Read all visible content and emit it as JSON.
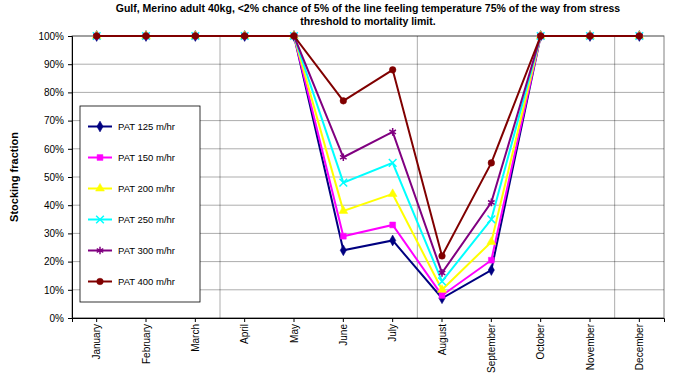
{
  "chart_data": {
    "type": "line",
    "title": [
      "Gulf,  Merino adult 40kg,  <2% chance of 5% of the line feeling temperature 75% of the way from stress",
      "threshold to mortality limit."
    ],
    "y_label": "Stocking fraction",
    "categories": [
      "January",
      "February",
      "March",
      "April",
      "May",
      "June",
      "July",
      "August",
      "September",
      "October",
      "November",
      "December"
    ],
    "series": [
      {
        "name": "PAT 125 m/hr",
        "color": "#000080",
        "marker": "diamond",
        "values": [
          100,
          100,
          100,
          100,
          100,
          24,
          27.5,
          7,
          17,
          100,
          100,
          100
        ]
      },
      {
        "name": "PAT 150 m/hr",
        "color": "#ff00ff",
        "marker": "square",
        "values": [
          100,
          100,
          100,
          100,
          100,
          29,
          33,
          8,
          20.5,
          100,
          100,
          100
        ]
      },
      {
        "name": "PAT 200 m/hr",
        "color": "#ffff00",
        "marker": "triangle",
        "values": [
          100,
          100,
          100,
          100,
          100,
          38,
          44,
          10,
          27,
          100,
          100,
          100
        ]
      },
      {
        "name": "PAT 250 m/hr",
        "color": "#00ffff",
        "marker": "x",
        "values": [
          100,
          100,
          100,
          100,
          100,
          48,
          55,
          13,
          35,
          100,
          100,
          100
        ]
      },
      {
        "name": "PAT 300 m/hr",
        "color": "#800080",
        "marker": "star",
        "values": [
          100,
          100,
          100,
          100,
          100,
          57,
          66,
          16,
          41,
          100,
          100,
          100
        ]
      },
      {
        "name": "PAT 400 m/hr",
        "color": "#800000",
        "marker": "circle",
        "values": [
          100,
          100,
          100,
          100,
          100,
          77,
          88,
          22,
          55,
          100,
          100,
          100
        ]
      }
    ],
    "ylim": [
      0,
      100
    ],
    "yticks": [
      {
        "value": 0,
        "label": "0%"
      },
      {
        "value": 10,
        "label": "10%"
      },
      {
        "value": 20,
        "label": "20%"
      },
      {
        "value": 30,
        "label": "30%"
      },
      {
        "value": 40,
        "label": "40%"
      },
      {
        "value": 50,
        "label": "50%"
      },
      {
        "value": 60,
        "label": "60%"
      },
      {
        "value": 70,
        "label": "70%"
      },
      {
        "value": 80,
        "label": "80%"
      },
      {
        "value": 90,
        "label": "90%"
      },
      {
        "value": 100,
        "label": "100%"
      }
    ],
    "grid": true,
    "legend": "left"
  }
}
